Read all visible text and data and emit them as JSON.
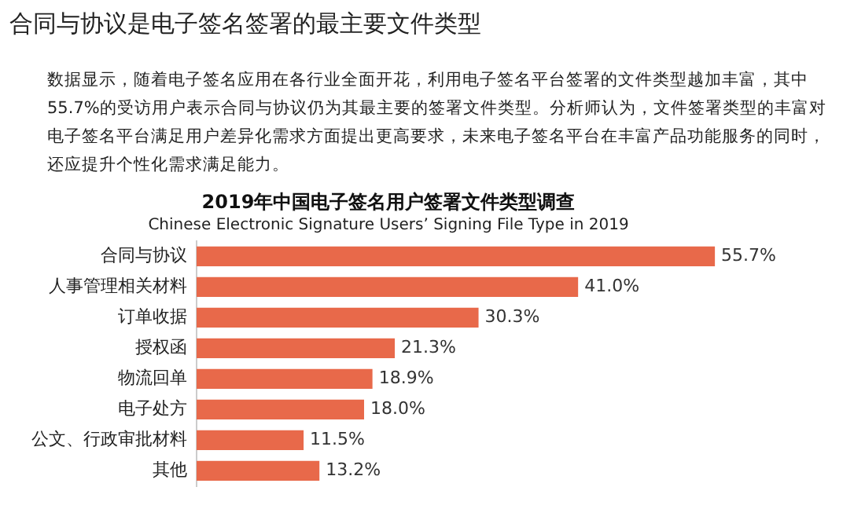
{
  "chart_data": {
    "type": "bar",
    "orientation": "horizontal",
    "title": "2019年中国电子签名用户签署文件类型调查",
    "subtitle": "Chinese Electronic Signature Users’ Signing File Type in 2019",
    "annotations": [
      "合同与协议是电子签名签署的最主要文件类型",
      "数据显示，随着电子签名应用在各行业全面开花，利用电子签名平台签署的文件类型越加丰富，其中55.7%的受访用户表示合同与协议仍为其最主要的签署文件类型。分析师认为，文件签署类型的丰富对电子签名平台满足用户差异化需求方面提出更高要求，未来电子签名平台在丰富产品功能服务的同时，还应提升个性化需求满足能力。"
    ],
    "categories": [
      "合同与协议",
      "人事管理相关材料",
      "订单收据",
      "授权函",
      "物流回单",
      "电子处方",
      "公文、行政审批材料",
      "其他"
    ],
    "values": [
      55.7,
      41.0,
      30.3,
      21.3,
      18.9,
      18.0,
      11.5,
      13.2
    ],
    "value_labels": [
      "55.7%",
      "41.0%",
      "30.3%",
      "21.3%",
      "18.9%",
      "18.0%",
      "11.5%",
      "13.2%"
    ],
    "color": "#e8694a",
    "legend": false
  }
}
